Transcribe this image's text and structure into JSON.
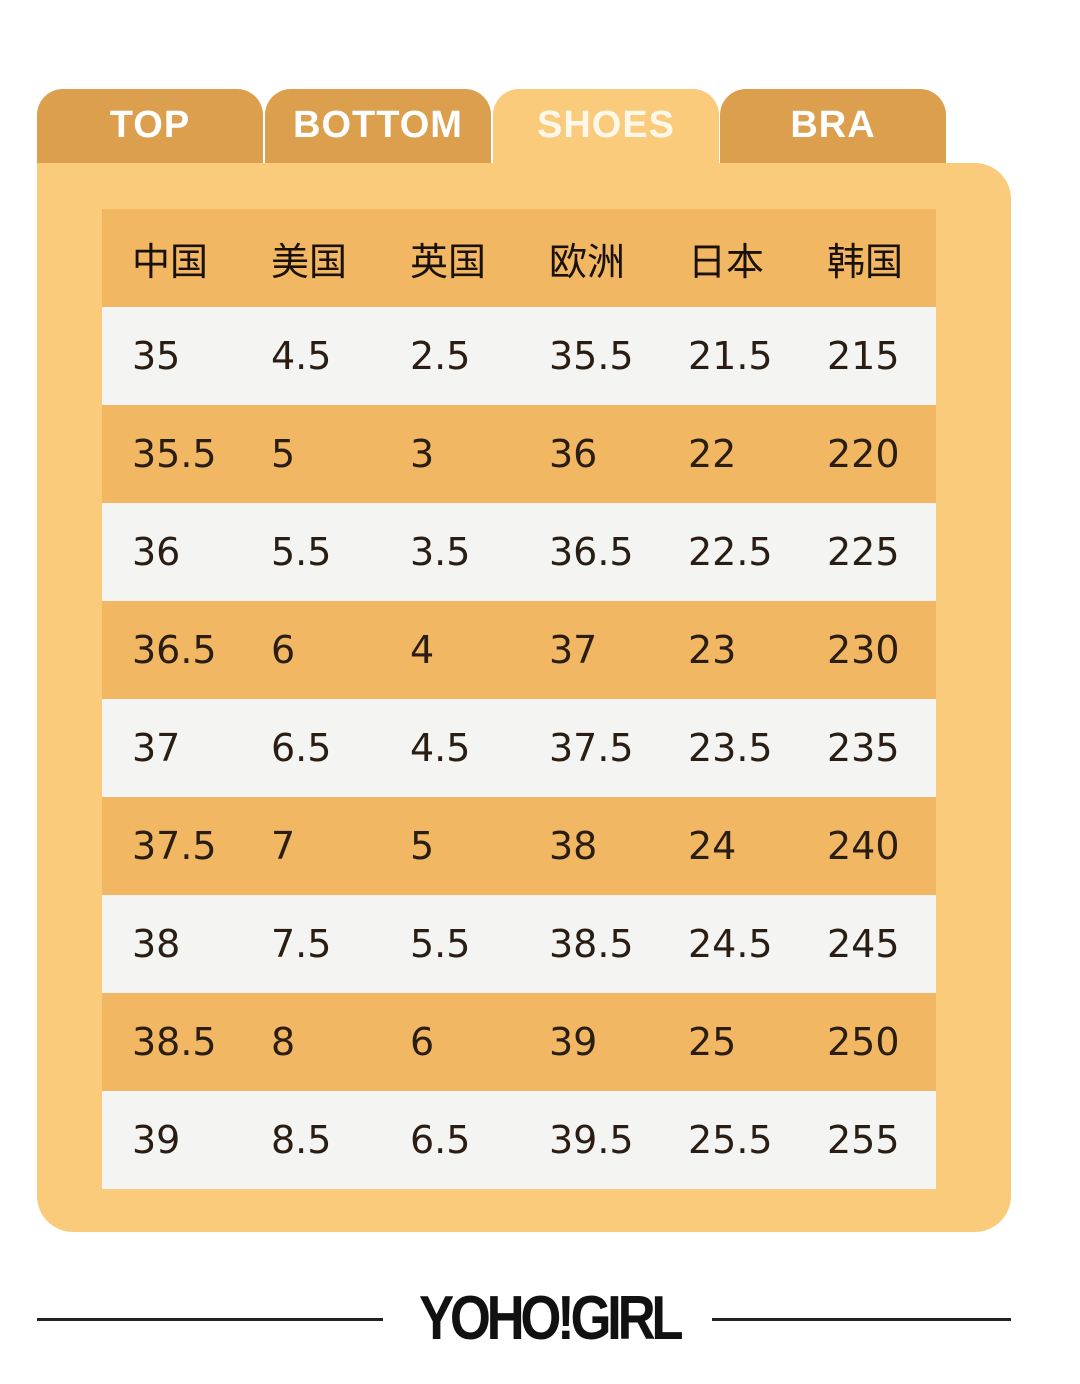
{
  "tabs": [
    {
      "label": "TOP"
    },
    {
      "label": "BOTTOM"
    },
    {
      "label": "SHOES",
      "active": true
    },
    {
      "label": "BRA"
    }
  ],
  "colors": {
    "tab": "#dc9f4e",
    "active_tab": "#f9cb7a",
    "header_row": "#f2b763",
    "alt_row": "#f4f4f2"
  },
  "table": {
    "headers": [
      "中国",
      "美国",
      "英国",
      "欧洲",
      "日本",
      "韩国"
    ],
    "rows": [
      [
        "35",
        "4.5",
        "2.5",
        "35.5",
        "21.5",
        "215"
      ],
      [
        "35.5",
        "5",
        "3",
        "36",
        "22",
        "220"
      ],
      [
        "36",
        "5.5",
        "3.5",
        "36.5",
        "22.5",
        "225"
      ],
      [
        "36.5",
        "6",
        "4",
        "37",
        "23",
        "230"
      ],
      [
        "37",
        "6.5",
        "4.5",
        "37.5",
        "23.5",
        "235"
      ],
      [
        "37.5",
        "7",
        "5",
        "38",
        "24",
        "240"
      ],
      [
        "38",
        "7.5",
        "5.5",
        "38.5",
        "24.5",
        "245"
      ],
      [
        "38.5",
        "8",
        "6",
        "39",
        "25",
        "250"
      ],
      [
        "39",
        "8.5",
        "6.5",
        "39.5",
        "25.5",
        "255"
      ]
    ]
  },
  "footer": {
    "logo": "YOHO!GIRL"
  }
}
